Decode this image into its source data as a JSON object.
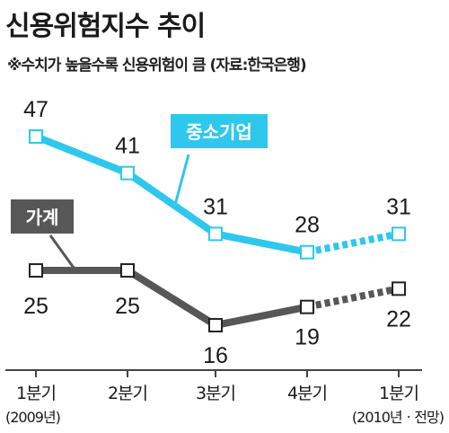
{
  "title": "신용위험지수 추이",
  "subtitle": "※수치가 높을수록 신용위험이 큼 (자료:한국은행)",
  "chart_data": {
    "type": "line",
    "title": "신용위험지수 추이",
    "categories": [
      "1분기",
      "2분기",
      "3분기",
      "4분기",
      "1분기"
    ],
    "category_sublabels": [
      "(2009년)",
      "",
      "",
      "",
      "(2010년ㆍ전망)"
    ],
    "series": [
      {
        "name": "중소기업",
        "values": [
          47,
          41,
          31,
          28,
          31
        ],
        "color": "#2fc7ee",
        "forecast_from_index": 3
      },
      {
        "name": "가계",
        "values": [
          25,
          25,
          16,
          19,
          22
        ],
        "color": "#575757",
        "forecast_from_index": 3
      }
    ],
    "ylim": [
      0,
      50
    ],
    "grid": false,
    "legend": "inline-labels"
  }
}
